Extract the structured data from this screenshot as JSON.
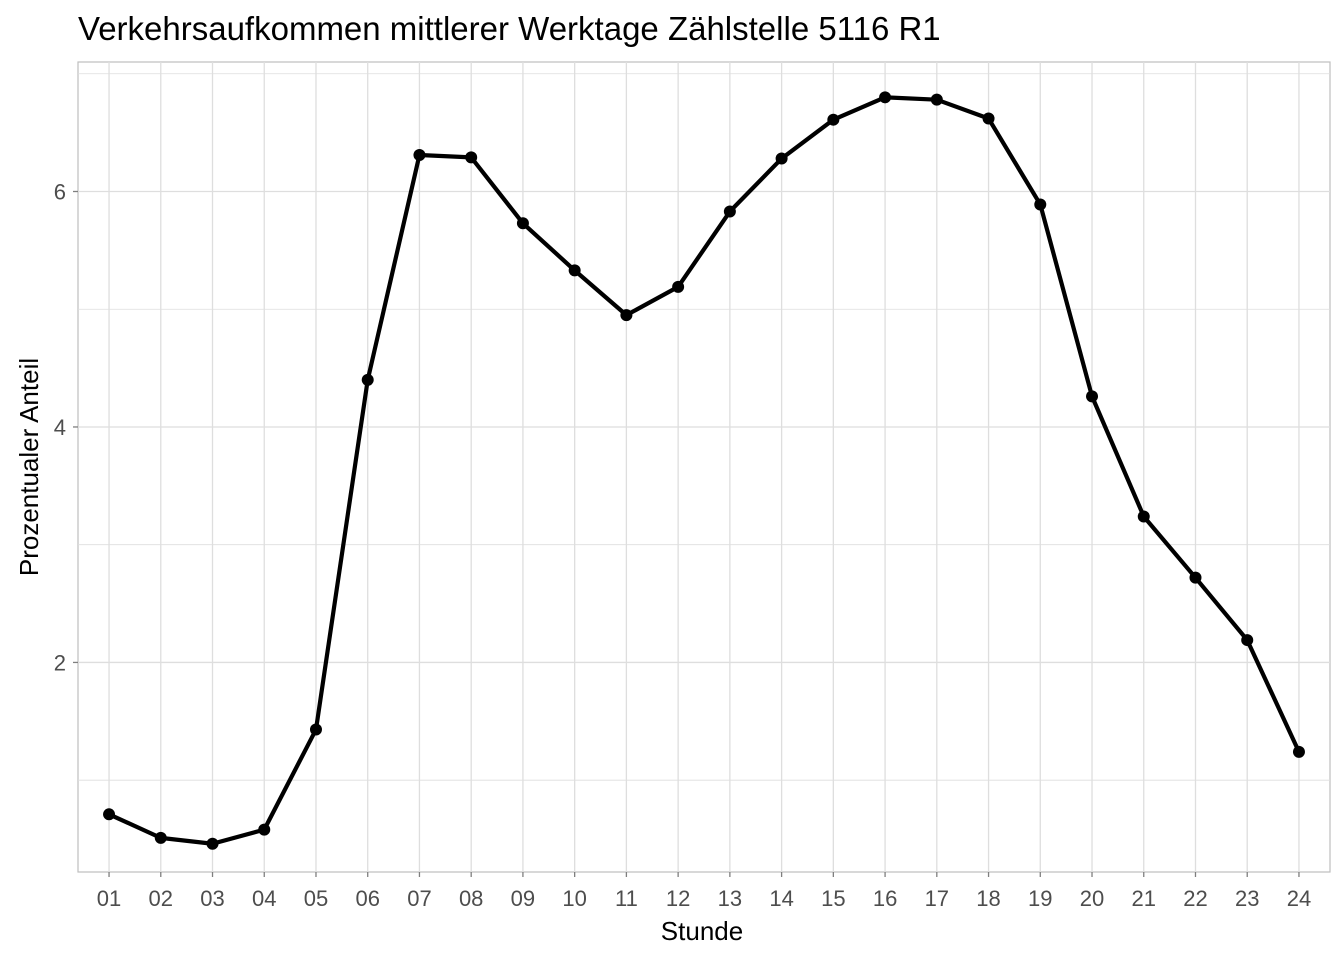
{
  "chart_data": {
    "type": "line",
    "title": "Verkehrsaufkommen mittlerer Werktage Zählstelle 5116 R1",
    "xlabel": "Stunde",
    "ylabel": "Prozentualer Anteil",
    "categories": [
      "01",
      "02",
      "03",
      "04",
      "05",
      "06",
      "07",
      "08",
      "09",
      "10",
      "11",
      "12",
      "13",
      "14",
      "15",
      "16",
      "17",
      "18",
      "19",
      "20",
      "21",
      "22",
      "23",
      "24"
    ],
    "values": [
      0.71,
      0.51,
      0.46,
      0.58,
      1.43,
      4.4,
      6.31,
      6.29,
      5.73,
      5.33,
      4.95,
      5.19,
      5.83,
      6.28,
      6.61,
      6.8,
      6.78,
      6.62,
      5.89,
      4.26,
      3.24,
      2.72,
      2.19,
      1.24
    ],
    "yticks": [
      2,
      4,
      6
    ],
    "ylim": [
      0.22,
      7.1
    ],
    "grid": true,
    "legend": "none",
    "colors": {
      "line": "#000000",
      "grid": "#dedede",
      "border": "#bfbfbf"
    }
  }
}
